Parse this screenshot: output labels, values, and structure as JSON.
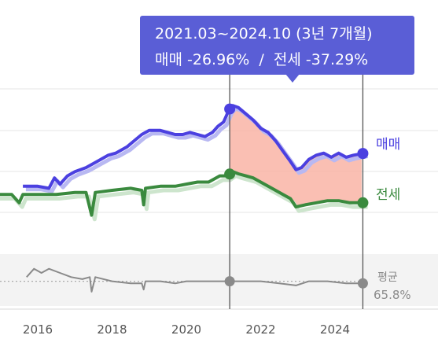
{
  "tooltip": {
    "period": "2021.03~2024.10 (3년 7개월)",
    "sale_change_label": "매매 -26.96%",
    "separator": "/",
    "jeonse_change_label": "전세 -37.29%"
  },
  "colors": {
    "sale": "#4b40e0",
    "sale_light": "#b8b8f2",
    "jeonse": "#3a8a3e",
    "jeonse_light": "#cde5cd",
    "gap_fill": "#f9b4a6",
    "ratio": "#8a8a8a",
    "tooltip_bg": "#5a5ed6"
  },
  "chart_data": {
    "type": "line",
    "x_axis": {
      "ticks": [
        "2016",
        "2018",
        "2020",
        "2022",
        "2024"
      ],
      "range": [
        2014.2,
        2025.5
      ]
    },
    "markers": {
      "start": "2021.03",
      "end": "2024.10"
    },
    "series": [
      {
        "name": "매매",
        "points": [
          [
            2015.6,
            48
          ],
          [
            2016.0,
            48
          ],
          [
            2016.3,
            47
          ],
          [
            2016.45,
            52
          ],
          [
            2016.6,
            49
          ],
          [
            2016.8,
            53
          ],
          [
            2017.0,
            55
          ],
          [
            2017.3,
            57
          ],
          [
            2017.6,
            60
          ],
          [
            2017.9,
            63
          ],
          [
            2018.1,
            64
          ],
          [
            2018.4,
            67
          ],
          [
            2018.6,
            70
          ],
          [
            2018.8,
            73
          ],
          [
            2019.0,
            75
          ],
          [
            2019.3,
            75
          ],
          [
            2019.5,
            74
          ],
          [
            2019.7,
            73
          ],
          [
            2019.9,
            73
          ],
          [
            2020.1,
            74
          ],
          [
            2020.3,
            73
          ],
          [
            2020.5,
            72
          ],
          [
            2020.7,
            74
          ],
          [
            2020.85,
            77
          ],
          [
            2021.0,
            79
          ],
          [
            2021.15,
            85
          ],
          [
            2021.25,
            87
          ],
          [
            2021.4,
            86
          ],
          [
            2021.6,
            83
          ],
          [
            2021.8,
            80
          ],
          [
            2022.0,
            76
          ],
          [
            2022.2,
            74
          ],
          [
            2022.4,
            70
          ],
          [
            2022.6,
            65
          ],
          [
            2022.8,
            60
          ],
          [
            2022.95,
            56
          ],
          [
            2023.1,
            57
          ],
          [
            2023.3,
            61
          ],
          [
            2023.5,
            63
          ],
          [
            2023.7,
            64
          ],
          [
            2023.9,
            62
          ],
          [
            2024.1,
            64
          ],
          [
            2024.3,
            62
          ],
          [
            2024.5,
            63
          ],
          [
            2024.8,
            64
          ]
        ]
      },
      {
        "name": "전세",
        "points": [
          [
            2014.2,
            39
          ],
          [
            2014.5,
            43
          ],
          [
            2014.7,
            44
          ],
          [
            2015.0,
            44
          ],
          [
            2015.3,
            44
          ],
          [
            2015.5,
            40
          ],
          [
            2015.6,
            44
          ],
          [
            2016.0,
            44
          ],
          [
            2016.5,
            44
          ],
          [
            2017.0,
            45
          ],
          [
            2017.3,
            45
          ],
          [
            2017.45,
            34
          ],
          [
            2017.55,
            45
          ],
          [
            2018.0,
            46
          ],
          [
            2018.5,
            47
          ],
          [
            2018.8,
            46
          ],
          [
            2018.85,
            39
          ],
          [
            2018.9,
            47
          ],
          [
            2019.3,
            48
          ],
          [
            2019.7,
            48
          ],
          [
            2020.0,
            49
          ],
          [
            2020.3,
            50
          ],
          [
            2020.6,
            50
          ],
          [
            2020.9,
            53
          ],
          [
            2021.1,
            53
          ],
          [
            2021.25,
            55
          ],
          [
            2021.4,
            54
          ],
          [
            2021.6,
            53
          ],
          [
            2021.8,
            52
          ],
          [
            2022.0,
            50
          ],
          [
            2022.2,
            48
          ],
          [
            2022.4,
            46
          ],
          [
            2022.6,
            44
          ],
          [
            2022.8,
            42
          ],
          [
            2022.95,
            38
          ],
          [
            2023.2,
            39
          ],
          [
            2023.5,
            40
          ],
          [
            2023.8,
            41
          ],
          [
            2024.1,
            41
          ],
          [
            2024.4,
            40
          ],
          [
            2024.8,
            40
          ]
        ]
      },
      {
        "name": "평균",
        "points": [
          [
            2015.7,
            18
          ],
          [
            2015.9,
            22
          ],
          [
            2016.1,
            20
          ],
          [
            2016.3,
            22
          ],
          [
            2016.6,
            20
          ],
          [
            2016.9,
            18
          ],
          [
            2017.2,
            17
          ],
          [
            2017.4,
            18
          ],
          [
            2017.45,
            11
          ],
          [
            2017.55,
            18
          ],
          [
            2018.0,
            16
          ],
          [
            2018.5,
            15
          ],
          [
            2018.8,
            15
          ],
          [
            2018.85,
            12
          ],
          [
            2018.9,
            16
          ],
          [
            2019.3,
            16
          ],
          [
            2019.7,
            15
          ],
          [
            2020.0,
            16
          ],
          [
            2020.5,
            16
          ],
          [
            2021.0,
            16
          ],
          [
            2021.25,
            16
          ],
          [
            2021.5,
            16
          ],
          [
            2022.0,
            16
          ],
          [
            2022.5,
            15
          ],
          [
            2022.95,
            14
          ],
          [
            2023.3,
            16
          ],
          [
            2023.8,
            16
          ],
          [
            2024.3,
            15
          ],
          [
            2024.8,
            15
          ]
        ]
      }
    ],
    "end_labels": {
      "sale": "매매",
      "jeonse": "전세",
      "avg_title": "평균",
      "avg_value": "65.8%"
    },
    "avg_reference_y": 16
  }
}
